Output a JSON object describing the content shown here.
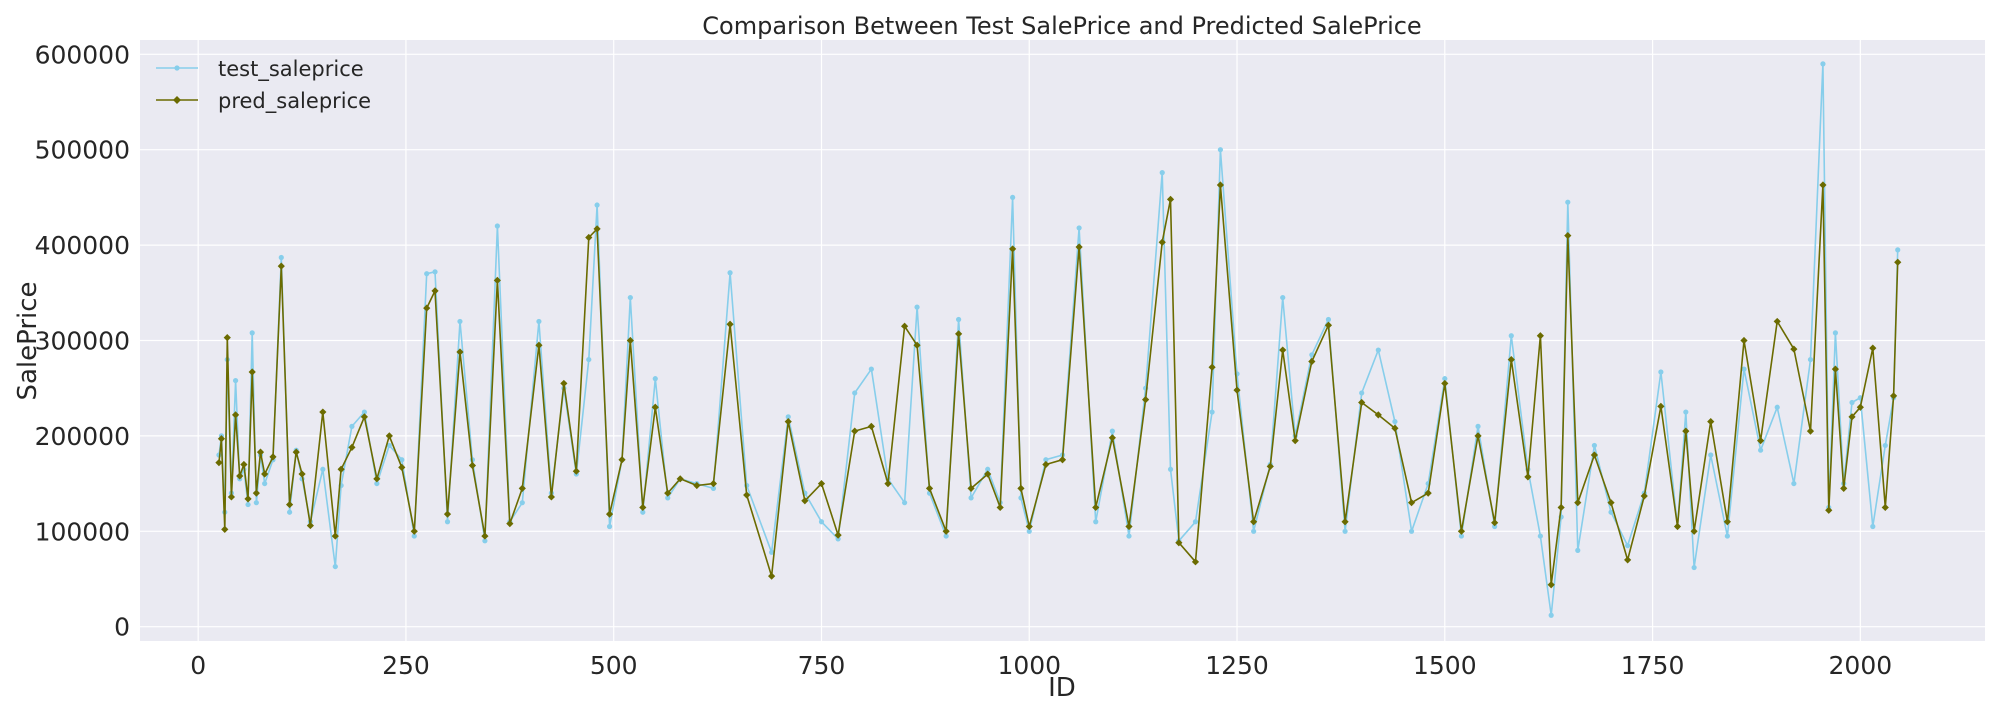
{
  "chart_data": {
    "type": "line",
    "title": "Comparison Between Test SalePrice and Predicted SalePrice",
    "xlabel": "ID",
    "ylabel": "SalePrice",
    "xlim": [
      -70,
      2150
    ],
    "ylim": [
      -15000,
      615000
    ],
    "xticks": [
      0,
      250,
      500,
      750,
      1000,
      1250,
      1500,
      1750,
      2000
    ],
    "yticks": [
      0,
      100000,
      200000,
      300000,
      400000,
      500000,
      600000
    ],
    "grid": true,
    "legend_position": "top-left",
    "colors": {
      "background": "#eaeaf2",
      "grid": "#ffffff",
      "test": "#87ceeb",
      "pred": "#6b6b00"
    },
    "series": [
      {
        "name": "test_saleprice",
        "marker": "circle",
        "x": [
          25,
          28,
          32,
          35,
          40,
          45,
          50,
          55,
          60,
          65,
          70,
          75,
          80,
          90,
          100,
          110,
          118,
          125,
          135,
          150,
          165,
          172,
          185,
          200,
          215,
          230,
          245,
          260,
          275,
          285,
          300,
          315,
          330,
          345,
          360,
          375,
          390,
          410,
          425,
          440,
          455,
          470,
          480,
          495,
          510,
          520,
          535,
          550,
          565,
          580,
          600,
          620,
          640,
          660,
          690,
          710,
          730,
          750,
          770,
          790,
          810,
          830,
          850,
          865,
          880,
          900,
          915,
          930,
          950,
          965,
          980,
          990,
          1000,
          1020,
          1040,
          1060,
          1080,
          1100,
          1120,
          1140,
          1160,
          1170,
          1180,
          1200,
          1220,
          1230,
          1250,
          1270,
          1290,
          1305,
          1320,
          1340,
          1360,
          1380,
          1400,
          1420,
          1440,
          1460,
          1480,
          1500,
          1520,
          1540,
          1560,
          1580,
          1600,
          1615,
          1628,
          1640,
          1648,
          1660,
          1680,
          1700,
          1720,
          1740,
          1760,
          1780,
          1790,
          1800,
          1820,
          1840,
          1860,
          1880,
          1900,
          1920,
          1940,
          1955,
          1962,
          1970,
          1980,
          1990,
          2000,
          2015,
          2030,
          2040,
          2045
        ],
        "values": [
          180000,
          200000,
          120000,
          280000,
          140000,
          258000,
          155000,
          165000,
          128000,
          308000,
          130000,
          180000,
          150000,
          175000,
          387000,
          120000,
          185000,
          155000,
          110000,
          165000,
          63000,
          148000,
          210000,
          225000,
          150000,
          190000,
          175000,
          95000,
          370000,
          372000,
          110000,
          320000,
          175000,
          90000,
          420000,
          110000,
          130000,
          320000,
          140000,
          250000,
          160000,
          280000,
          442000,
          105000,
          175000,
          345000,
          120000,
          260000,
          135000,
          155000,
          150000,
          145000,
          371000,
          148000,
          78000,
          220000,
          140000,
          110000,
          92000,
          245000,
          270000,
          155000,
          130000,
          335000,
          140000,
          95000,
          322000,
          135000,
          165000,
          130000,
          450000,
          135000,
          100000,
          175000,
          180000,
          418000,
          110000,
          205000,
          95000,
          250000,
          476000,
          165000,
          90000,
          110000,
          225000,
          500000,
          265000,
          100000,
          170000,
          345000,
          200000,
          285000,
          322000,
          100000,
          245000,
          290000,
          215000,
          100000,
          150000,
          260000,
          95000,
          210000,
          105000,
          305000,
          165000,
          95000,
          12000,
          115000,
          445000,
          80000,
          190000,
          120000,
          85000,
          140000,
          267000,
          105000,
          225000,
          62000,
          180000,
          95000,
          270000,
          185000,
          230000,
          150000,
          280000,
          590000,
          125000,
          308000,
          150000,
          235000,
          240000,
          105000,
          190000,
          240000,
          395000
        ]
      },
      {
        "name": "pred_saleprice",
        "marker": "diamond",
        "x": [
          25,
          28,
          32,
          35,
          40,
          45,
          50,
          55,
          60,
          65,
          70,
          75,
          80,
          90,
          100,
          110,
          118,
          125,
          135,
          150,
          165,
          172,
          185,
          200,
          215,
          230,
          245,
          260,
          275,
          285,
          300,
          315,
          330,
          345,
          360,
          375,
          390,
          410,
          425,
          440,
          455,
          470,
          480,
          495,
          510,
          520,
          535,
          550,
          565,
          580,
          600,
          620,
          640,
          660,
          690,
          710,
          730,
          750,
          770,
          790,
          810,
          830,
          850,
          865,
          880,
          900,
          915,
          930,
          950,
          965,
          980,
          990,
          1000,
          1020,
          1040,
          1060,
          1080,
          1100,
          1120,
          1140,
          1160,
          1170,
          1180,
          1200,
          1220,
          1230,
          1250,
          1270,
          1290,
          1305,
          1320,
          1340,
          1360,
          1380,
          1400,
          1420,
          1440,
          1460,
          1480,
          1500,
          1520,
          1540,
          1560,
          1580,
          1600,
          1615,
          1628,
          1640,
          1648,
          1660,
          1680,
          1700,
          1720,
          1740,
          1760,
          1780,
          1790,
          1800,
          1820,
          1840,
          1860,
          1880,
          1900,
          1920,
          1940,
          1955,
          1962,
          1970,
          1980,
          1990,
          2000,
          2015,
          2030,
          2040,
          2045
        ],
        "values": [
          172000,
          197000,
          102000,
          303000,
          136000,
          222000,
          158000,
          170000,
          134000,
          267000,
          140000,
          183000,
          160000,
          178000,
          378000,
          128000,
          183000,
          160000,
          106000,
          225000,
          95000,
          165000,
          188000,
          220000,
          155000,
          200000,
          167000,
          100000,
          334000,
          352000,
          118000,
          288000,
          169000,
          95000,
          363000,
          108000,
          145000,
          295000,
          136000,
          255000,
          163000,
          408000,
          417000,
          118000,
          175000,
          300000,
          125000,
          230000,
          140000,
          155000,
          148000,
          150000,
          317000,
          138000,
          53000,
          215000,
          132000,
          150000,
          96000,
          205000,
          210000,
          150000,
          315000,
          295000,
          145000,
          100000,
          307000,
          145000,
          160000,
          125000,
          396000,
          145000,
          105000,
          170000,
          175000,
          398000,
          125000,
          198000,
          105000,
          238000,
          403000,
          448000,
          88000,
          68000,
          272000,
          463000,
          248000,
          110000,
          168000,
          290000,
          195000,
          278000,
          316000,
          110000,
          235000,
          222000,
          208000,
          130000,
          140000,
          255000,
          100000,
          200000,
          109000,
          280000,
          157000,
          305000,
          44000,
          125000,
          410000,
          130000,
          180000,
          130000,
          70000,
          137000,
          231000,
          105000,
          205000,
          100000,
          215000,
          110000,
          300000,
          195000,
          320000,
          291000,
          205000,
          463000,
          122000,
          270000,
          145000,
          220000,
          230000,
          292000,
          125000,
          242000,
          382000
        ]
      }
    ]
  }
}
